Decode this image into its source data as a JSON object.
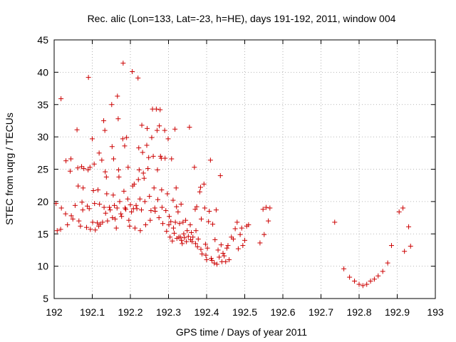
{
  "chart_data": {
    "type": "scatter",
    "title": "Rec. alic (Lon=133, Lat=-23, h=HE), days 191-192, 2011, window 004",
    "xlabel": "GPS time / Days of year 2011",
    "ylabel": "STEC from uqrg / TECUs",
    "xlim": [
      192,
      193
    ],
    "ylim": [
      5,
      45
    ],
    "xticks": [
      "192",
      "192.1",
      "192.2",
      "192.3",
      "192.4",
      "192.5",
      "192.6",
      "192.7",
      "192.8",
      "192.9",
      "193"
    ],
    "yticks": [
      "5",
      "10",
      "15",
      "20",
      "25",
      "30",
      "35",
      "40",
      "45"
    ],
    "grid": true,
    "marker": "plus",
    "color": "#cc0000",
    "points": [
      [
        192.005,
        19.7
      ],
      [
        192.008,
        15.5
      ],
      [
        192.017,
        15.7
      ],
      [
        192.018,
        35.9
      ],
      [
        192.019,
        19.0
      ],
      [
        192.03,
        18.1
      ],
      [
        192.031,
        26.3
      ],
      [
        192.035,
        16.4
      ],
      [
        192.042,
        24.7
      ],
      [
        192.044,
        26.6
      ],
      [
        192.045,
        17.8
      ],
      [
        192.049,
        17.3
      ],
      [
        192.055,
        19.4
      ],
      [
        192.06,
        31.1
      ],
      [
        192.062,
        25.2
      ],
      [
        192.063,
        22.4
      ],
      [
        192.065,
        17.0
      ],
      [
        192.069,
        16.2
      ],
      [
        192.072,
        25.4
      ],
      [
        192.073,
        19.9
      ],
      [
        192.075,
        18.7
      ],
      [
        192.076,
        22.1
      ],
      [
        192.078,
        25.1
      ],
      [
        192.085,
        16.0
      ],
      [
        192.087,
        19.3
      ],
      [
        192.089,
        24.9
      ],
      [
        192.09,
        39.2
      ],
      [
        192.092,
        18.9
      ],
      [
        192.094,
        25.3
      ],
      [
        192.095,
        15.7
      ],
      [
        192.1,
        29.7
      ],
      [
        192.101,
        16.8
      ],
      [
        192.103,
        21.7
      ],
      [
        192.105,
        25.8
      ],
      [
        192.106,
        19.7
      ],
      [
        192.108,
        15.6
      ],
      [
        192.113,
        16.7
      ],
      [
        192.115,
        21.8
      ],
      [
        192.117,
        16.2
      ],
      [
        192.118,
        27.5
      ],
      [
        192.119,
        19.6
      ],
      [
        192.121,
        16.5
      ],
      [
        192.125,
        26.4
      ],
      [
        192.127,
        16.8
      ],
      [
        192.13,
        32.5
      ],
      [
        192.131,
        19.1
      ],
      [
        192.133,
        31.0
      ],
      [
        192.134,
        24.6
      ],
      [
        192.135,
        18.2
      ],
      [
        192.137,
        23.8
      ],
      [
        192.138,
        21.2
      ],
      [
        192.14,
        17.0
      ],
      [
        192.145,
        19.1
      ],
      [
        192.147,
        18.7
      ],
      [
        192.151,
        35.0
      ],
      [
        192.152,
        28.5
      ],
      [
        192.153,
        17.5
      ],
      [
        192.155,
        21.0
      ],
      [
        192.156,
        26.6
      ],
      [
        192.158,
        19.4
      ],
      [
        192.16,
        17.3
      ],
      [
        192.163,
        15.9
      ],
      [
        192.165,
        19.0
      ],
      [
        192.166,
        36.3
      ],
      [
        192.168,
        32.8
      ],
      [
        192.169,
        24.9
      ],
      [
        192.17,
        23.8
      ],
      [
        192.172,
        20.0
      ],
      [
        192.175,
        18.1
      ],
      [
        192.177,
        17.7
      ],
      [
        192.18,
        29.7
      ],
      [
        192.181,
        41.4
      ],
      [
        192.183,
        21.6
      ],
      [
        192.185,
        28.6
      ],
      [
        192.186,
        19.0
      ],
      [
        192.188,
        18.8
      ],
      [
        192.19,
        29.9
      ],
      [
        192.193,
        20.4
      ],
      [
        192.194,
        25.3
      ],
      [
        192.196,
        17.1
      ],
      [
        192.198,
        16.2
      ],
      [
        192.2,
        19.5
      ],
      [
        192.203,
        18.4
      ],
      [
        192.205,
        40.1
      ],
      [
        192.206,
        22.4
      ],
      [
        192.208,
        18.9
      ],
      [
        192.21,
        22.7
      ],
      [
        192.212,
        15.9
      ],
      [
        192.215,
        19.4
      ],
      [
        192.217,
        18.9
      ],
      [
        192.22,
        39.1
      ],
      [
        192.221,
        23.4
      ],
      [
        192.222,
        28.3
      ],
      [
        192.223,
        24.9
      ],
      [
        192.225,
        20.4
      ],
      [
        192.226,
        15.5
      ],
      [
        192.229,
        18.7
      ],
      [
        192.23,
        31.8
      ],
      [
        192.232,
        27.6
      ],
      [
        192.234,
        24.4
      ],
      [
        192.236,
        23.6
      ],
      [
        192.238,
        20.0
      ],
      [
        192.24,
        16.4
      ],
      [
        192.243,
        28.7
      ],
      [
        192.244,
        31.3
      ],
      [
        192.246,
        25.1
      ],
      [
        192.248,
        26.8
      ],
      [
        192.25,
        20.8
      ],
      [
        192.252,
        17.1
      ],
      [
        192.254,
        18.6
      ],
      [
        192.256,
        29.9
      ],
      [
        192.258,
        34.3
      ],
      [
        192.26,
        27.0
      ],
      [
        192.262,
        22.1
      ],
      [
        192.264,
        19.0
      ],
      [
        192.265,
        18.5
      ],
      [
        192.268,
        34.3
      ],
      [
        192.27,
        31.0
      ],
      [
        192.271,
        24.9
      ],
      [
        192.272,
        20.3
      ],
      [
        192.275,
        17.5
      ],
      [
        192.276,
        31.7
      ],
      [
        192.278,
        34.2
      ],
      [
        192.279,
        27.0
      ],
      [
        192.281,
        26.7
      ],
      [
        192.282,
        21.8
      ],
      [
        192.283,
        19.1
      ],
      [
        192.285,
        16.6
      ],
      [
        192.29,
        31.0
      ],
      [
        192.291,
        26.7
      ],
      [
        192.293,
        18.6
      ],
      [
        192.295,
        15.4
      ],
      [
        192.297,
        21.2
      ],
      [
        192.299,
        29.7
      ],
      [
        192.301,
        16.4
      ],
      [
        192.302,
        17.7
      ],
      [
        192.304,
        14.5
      ],
      [
        192.306,
        16.9
      ],
      [
        192.308,
        26.6
      ],
      [
        192.31,
        13.9
      ],
      [
        192.312,
        20.2
      ],
      [
        192.313,
        15.9
      ],
      [
        192.315,
        15.1
      ],
      [
        192.317,
        31.2
      ],
      [
        192.318,
        16.8
      ],
      [
        192.32,
        22.1
      ],
      [
        192.321,
        19.2
      ],
      [
        192.322,
        14.3
      ],
      [
        192.325,
        18.4
      ],
      [
        192.327,
        14.5
      ],
      [
        192.329,
        16.6
      ],
      [
        192.331,
        14.5
      ],
      [
        192.333,
        19.6
      ],
      [
        192.334,
        14.0
      ],
      [
        192.336,
        13.5
      ],
      [
        192.338,
        16.8
      ],
      [
        192.34,
        15.0
      ],
      [
        192.342,
        14.4
      ],
      [
        192.345,
        17.1
      ],
      [
        192.347,
        13.8
      ],
      [
        192.349,
        15.5
      ],
      [
        192.352,
        14.6
      ],
      [
        192.355,
        31.5
      ],
      [
        192.357,
        16.4
      ],
      [
        192.358,
        14.1
      ],
      [
        192.36,
        15.2
      ],
      [
        192.362,
        13.8
      ],
      [
        192.364,
        14.5
      ],
      [
        192.368,
        25.3
      ],
      [
        192.37,
        18.8
      ],
      [
        192.371,
        13.5
      ],
      [
        192.372,
        15.5
      ],
      [
        192.374,
        19.2
      ],
      [
        192.376,
        13.0
      ],
      [
        192.378,
        14.2
      ],
      [
        192.382,
        21.5
      ],
      [
        192.384,
        22.2
      ],
      [
        192.385,
        12.6
      ],
      [
        192.386,
        17.3
      ],
      [
        192.388,
        11.9
      ],
      [
        192.393,
        22.7
      ],
      [
        192.395,
        19.0
      ],
      [
        192.397,
        13.4
      ],
      [
        192.398,
        11.7
      ],
      [
        192.4,
        11.0
      ],
      [
        192.402,
        12.8
      ],
      [
        192.405,
        16.9
      ],
      [
        192.407,
        18.5
      ],
      [
        192.41,
        26.4
      ],
      [
        192.412,
        11.2
      ],
      [
        192.414,
        10.9
      ],
      [
        192.416,
        16.5
      ],
      [
        192.42,
        10.5
      ],
      [
        192.422,
        14.1
      ],
      [
        192.425,
        18.7
      ],
      [
        192.427,
        10.3
      ],
      [
        192.43,
        12.5
      ],
      [
        192.433,
        11.4
      ],
      [
        192.436,
        24.0
      ],
      [
        192.438,
        13.3
      ],
      [
        192.44,
        10.7
      ],
      [
        192.443,
        12.0
      ],
      [
        192.446,
        11.6
      ],
      [
        192.45,
        10.7
      ],
      [
        192.453,
        12.8
      ],
      [
        192.456,
        13.2
      ],
      [
        192.459,
        11.0
      ],
      [
        192.465,
        14.5
      ],
      [
        192.47,
        14.2
      ],
      [
        192.475,
        15.8
      ],
      [
        192.48,
        16.8
      ],
      [
        192.483,
        12.7
      ],
      [
        192.488,
        14.9
      ],
      [
        192.492,
        15.9
      ],
      [
        192.495,
        13.2
      ],
      [
        192.5,
        14.0
      ],
      [
        192.505,
        16.2
      ],
      [
        192.51,
        16.4
      ],
      [
        192.54,
        13.6
      ],
      [
        192.548,
        18.8
      ],
      [
        192.551,
        14.9
      ],
      [
        192.556,
        19.1
      ],
      [
        192.562,
        17.0
      ],
      [
        192.566,
        19.0
      ],
      [
        192.736,
        16.8
      ],
      [
        192.76,
        9.6
      ],
      [
        192.775,
        8.3
      ],
      [
        192.788,
        7.7
      ],
      [
        192.8,
        7.2
      ],
      [
        192.81,
        7.0
      ],
      [
        192.82,
        7.2
      ],
      [
        192.83,
        7.7
      ],
      [
        192.84,
        8.0
      ],
      [
        192.85,
        8.5
      ],
      [
        192.862,
        9.2
      ],
      [
        192.875,
        10.5
      ],
      [
        192.885,
        13.2
      ],
      [
        192.905,
        18.4
      ],
      [
        192.915,
        19.0
      ],
      [
        192.919,
        12.3
      ],
      [
        192.93,
        16.1
      ],
      [
        192.935,
        13.1
      ]
    ]
  }
}
